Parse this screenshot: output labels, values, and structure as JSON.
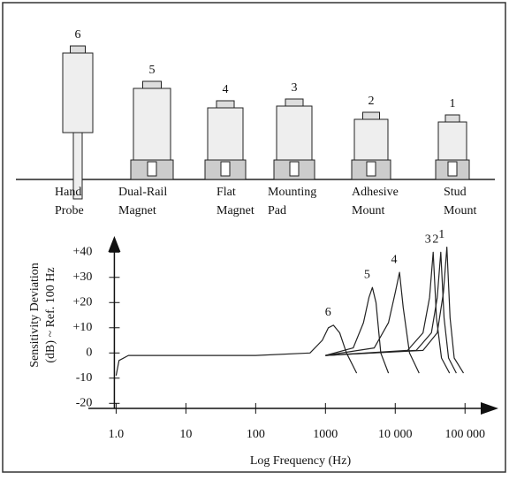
{
  "mounts": [
    {
      "number": "6",
      "name": [
        "Hand",
        "Probe"
      ]
    },
    {
      "number": "5",
      "name": [
        "Dual-Rail",
        "Magnet"
      ]
    },
    {
      "number": "4",
      "name": [
        "Flat",
        "Magnet"
      ]
    },
    {
      "number": "3",
      "name": [
        "Mounting",
        "Pad"
      ]
    },
    {
      "number": "2",
      "name": [
        "Adhesive",
        "Mount"
      ]
    },
    {
      "number": "1",
      "name": [
        "Stud",
        "Mount"
      ]
    }
  ],
  "chart_data": {
    "type": "line",
    "x_label": "Log Frequency (Hz)",
    "y_label": [
      "Sensitivity Deviation",
      "(dB) ~ Ref. 100 Hz"
    ],
    "log_x": true,
    "xlim": [
      0.4,
      200000
    ],
    "ylim": [
      -22,
      45
    ],
    "xticks": [
      {
        "value": 1,
        "label": "1.0"
      },
      10,
      100,
      1000,
      {
        "value": 10000,
        "label": "10 000"
      },
      {
        "value": 100000,
        "label": "100 000"
      }
    ],
    "yticks": [
      {
        "value": 40,
        "label": "+40"
      },
      {
        "value": 30,
        "label": "+30"
      },
      {
        "value": 20,
        "label": "+20"
      },
      {
        "value": 10,
        "label": "+10"
      },
      0,
      -10,
      -20
    ],
    "series": [
      {
        "name": "6",
        "color": "#222222",
        "x": [
          1,
          1.1,
          1.5,
          100,
          600,
          900,
          1100,
          1300,
          1600,
          2000,
          2800
        ],
        "values": [
          -9,
          -3,
          -1,
          -1,
          0,
          5,
          10,
          11,
          8,
          0,
          -8
        ]
      },
      {
        "name": "5",
        "color": "#222222",
        "x": [
          1000,
          2500,
          3500,
          4200,
          4700,
          5300,
          6200,
          8000
        ],
        "values": [
          -1,
          2,
          12,
          22,
          26,
          20,
          0,
          -8
        ]
      },
      {
        "name": "4",
        "color": "#222222",
        "x": [
          1000,
          5000,
          8000,
          10000,
          11500,
          13000,
          16000,
          22000
        ],
        "values": [
          -1,
          2,
          12,
          24,
          32,
          18,
          0,
          -8
        ]
      },
      {
        "name": "3",
        "color": "#222222",
        "x": [
          1000,
          15000,
          25000,
          31000,
          35000,
          39000,
          46000,
          60000
        ],
        "values": [
          -1,
          1,
          8,
          22,
          40,
          14,
          -2,
          -8
        ]
      },
      {
        "name": "2",
        "color": "#222222",
        "x": [
          1000,
          20000,
          33000,
          40000,
          45000,
          50000,
          58000,
          75000
        ],
        "values": [
          -1,
          1,
          8,
          22,
          40,
          14,
          -2,
          -8
        ]
      },
      {
        "name": "1",
        "color": "#222222",
        "x": [
          1000,
          25000,
          40000,
          49000,
          55000,
          61000,
          70000,
          95000
        ],
        "values": [
          -1,
          1,
          8,
          24,
          42,
          14,
          -2,
          -8
        ]
      }
    ]
  }
}
